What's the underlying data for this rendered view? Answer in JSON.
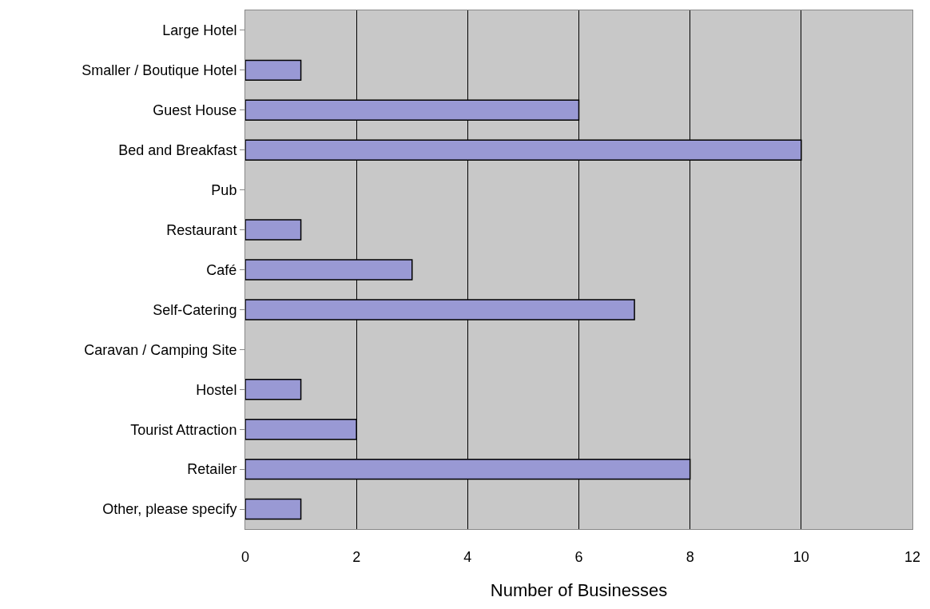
{
  "chart_data": {
    "type": "bar",
    "orientation": "horizontal",
    "xlabel": "Number of Businesses",
    "categories": [
      "Large Hotel",
      "Smaller / Boutique Hotel",
      "Guest House",
      "Bed and Breakfast",
      "Pub",
      "Restaurant",
      "Café",
      "Self-Catering",
      "Caravan / Camping Site",
      "Hostel",
      "Tourist Attraction",
      "Retailer",
      "Other, please specify"
    ],
    "values": [
      0,
      1,
      6,
      10,
      0,
      1,
      3,
      7,
      0,
      1,
      2,
      8,
      1
    ],
    "color": "#9999d4",
    "xlim": [
      0,
      12
    ],
    "xticks": [
      0,
      2,
      4,
      6,
      8,
      10,
      12
    ],
    "grid": "x",
    "legend": false
  }
}
